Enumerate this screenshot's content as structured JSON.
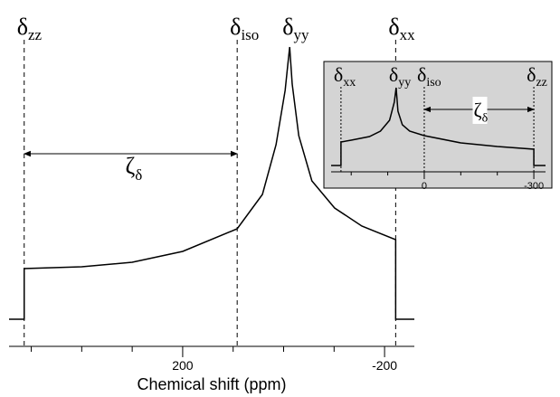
{
  "chart_data": [
    {
      "type": "line",
      "xlabel": "Chemical shift (ppm)",
      "x": [
        544,
        514,
        514,
        400,
        300,
        200,
        92,
        42,
        15,
        -3,
        -8,
        -12,
        -17,
        -30,
        -56,
        -101,
        -155,
        -222,
        -222,
        -259
      ],
      "series": [
        {
          "color": "#000000",
          "values": [
            0,
            0,
            56,
            58,
            63,
            75,
            100,
            138,
            193,
            253,
            280,
            301,
            260,
            203,
            153,
            123,
            103,
            88,
            0,
            0
          ]
        }
      ],
      "xlim": [
        544,
        -259
      ],
      "xticks": [
        200,
        -200
      ],
      "minor_xticks": [
        500,
        400,
        300,
        100,
        0,
        -100
      ],
      "ylim": [
        -30,
        320
      ],
      "annotations": [
        {
          "text": "δ",
          "sub": "zz",
          "x": 514,
          "dashed": true
        },
        {
          "text": "δ",
          "sub": "iso",
          "x": 92,
          "dashed": true
        },
        {
          "text": "δ",
          "sub": "yy",
          "x": -12,
          "dashed": false
        },
        {
          "text": "δ",
          "sub": "xx",
          "x": -222,
          "dashed": true
        }
      ],
      "span": {
        "text": "ζ",
        "sub": "δ",
        "from": 514,
        "to": 92
      }
    },
    {
      "type": "line",
      "x": [
        255,
        228,
        228,
        200,
        150,
        120,
        95,
        82,
        77,
        72,
        60,
        40,
        0,
        -100,
        -200,
        -300,
        -300,
        -332
      ],
      "series": [
        {
          "color": "#000000",
          "values": [
            0,
            0,
            26,
            28,
            32,
            38,
            50,
            70,
            86,
            60,
            45,
            38,
            33,
            25,
            21,
            18,
            0,
            0
          ]
        }
      ],
      "xlim": [
        255,
        -332
      ],
      "xticks": [
        0,
        -300
      ],
      "minor_xticks": [
        200,
        100,
        -100,
        -200
      ],
      "ylim": [
        -7,
        115
      ],
      "annotations": [
        {
          "text": "δ",
          "sub": "xx",
          "x": 228,
          "dashed": true
        },
        {
          "text": "δ",
          "sub": "yy",
          "x": 77,
          "dashed": false
        },
        {
          "text": "δ",
          "sub": "iso",
          "x": 0,
          "dashed": true
        },
        {
          "text": "δ",
          "sub": "zz",
          "x": -300,
          "dashed": true
        }
      ],
      "span": {
        "text": "ζ",
        "sub": "δ",
        "from": 0,
        "to": -300
      }
    }
  ]
}
